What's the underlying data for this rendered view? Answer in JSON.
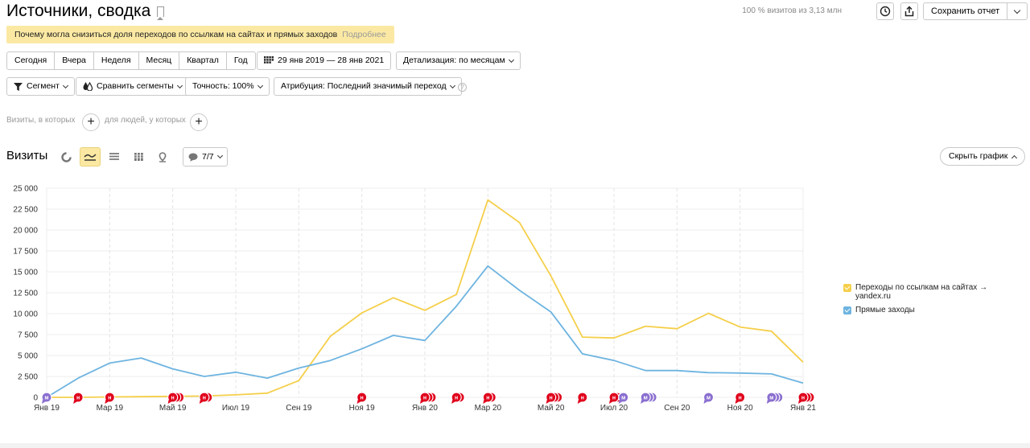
{
  "header": {
    "title": "Источники, сводка",
    "visits_info": "100 % визитов из 3,13 млн",
    "save_label": "Сохранить отчет"
  },
  "notice": {
    "text": "Почему могла снизиться доля переходов по ссылкам на сайтах и прямых заходов",
    "more_link": "Подробнее"
  },
  "period": {
    "presets": [
      "Сегодня",
      "Вчера",
      "Неделя",
      "Месяц",
      "Квартал",
      "Год"
    ],
    "date_range": "29 янв 2019 — 28 янв 2021",
    "detail": "Детализация: по месяцам"
  },
  "filters": {
    "segment": "Сегмент",
    "compare": "Сравнить сегменты",
    "accuracy": "Точность: 100%",
    "attribution": "Атрибуция: Последний значимый переход",
    "help": "?"
  },
  "segment_builder": {
    "visits_label": "Визиты, в которых",
    "people_label": "для людей, у которых",
    "plus": "+"
  },
  "chart_panel": {
    "title": "Визиты",
    "annotations_label": "7/7",
    "hide_label": "Скрыть график"
  },
  "colors": {
    "yellow": "#f5cf4a",
    "blue": "#6eb4e0",
    "red_marker": "#e0001b",
    "purple_marker": "#8a6fd0"
  },
  "chart_data": {
    "type": "line",
    "x": [
      "Янв 19",
      "Фев 19",
      "Мар 19",
      "Апр 19",
      "Май 19",
      "Июн 19",
      "Июл 19",
      "Авг 19",
      "Сен 19",
      "Окт 19",
      "Ноя 19",
      "Дек 19",
      "Янв 20",
      "Фев 20",
      "Мар 20",
      "Апр 20",
      "Май 20",
      "Июн 20",
      "Июл 20",
      "Авг 20",
      "Сен 20",
      "Окт 20",
      "Ноя 20",
      "Дек 20",
      "Янв 21"
    ],
    "x_tick_labels": [
      "Янв 19",
      "Мар 19",
      "Май 19",
      "Июл 19",
      "Сен 19",
      "Ноя 19",
      "Янв 20",
      "Мар 20",
      "Май 20",
      "Июл 20",
      "Сен 20",
      "Ноя 20",
      "Янв 21"
    ],
    "y_tick_labels": [
      "0",
      "2 500",
      "5 000",
      "7 500",
      "10 000",
      "12 500",
      "15 000",
      "17 500",
      "20 000",
      "22 500",
      "25 000"
    ],
    "ylim": [
      0,
      25000
    ],
    "grid": true,
    "legend_position": "right",
    "series": [
      {
        "name": "Переходы по ссылкам на сайтах → yandex.ru",
        "color": "#f5cf4a",
        "values": [
          0,
          0,
          50,
          80,
          120,
          150,
          300,
          500,
          2000,
          7300,
          10100,
          11900,
          10400,
          12300,
          23600,
          20900,
          14500,
          7200,
          7100,
          8500,
          8200,
          10050,
          8400,
          7900,
          4200
        ]
      },
      {
        "name": "Прямые заходы",
        "color": "#6eb4e0",
        "values": [
          0,
          2300,
          4100,
          4700,
          3400,
          2500,
          3000,
          2300,
          3500,
          4400,
          5800,
          7400,
          6800,
          10900,
          15700,
          12800,
          10200,
          5200,
          4400,
          3200,
          3200,
          2950,
          2900,
          2800,
          1700
        ]
      }
    ],
    "annotation_markers": [
      {
        "x_index": 0,
        "type": "purple",
        "count": 1
      },
      {
        "x_index": 1,
        "type": "red",
        "count": 1
      },
      {
        "x_index": 2,
        "type": "red",
        "count": 1
      },
      {
        "x_index": 4,
        "type": "red",
        "count": 3
      },
      {
        "x_index": 5,
        "type": "red",
        "count": 2
      },
      {
        "x_index": 10,
        "type": "red",
        "count": 1
      },
      {
        "x_index": 12,
        "type": "red",
        "count": 3
      },
      {
        "x_index": 13,
        "type": "red",
        "count": 2
      },
      {
        "x_index": 14,
        "type": "red",
        "count": 2
      },
      {
        "x_index": 16,
        "type": "red",
        "count": 3
      },
      {
        "x_index": 17,
        "type": "red",
        "count": 1
      },
      {
        "x_index": 18,
        "type": "red",
        "count": 2
      },
      {
        "x_index": 18.3,
        "type": "purple",
        "count": 1
      },
      {
        "x_index": 19,
        "type": "purple",
        "count": 3
      },
      {
        "x_index": 21,
        "type": "purple",
        "count": 1
      },
      {
        "x_index": 22,
        "type": "red",
        "count": 1
      },
      {
        "x_index": 23,
        "type": "purple",
        "count": 3
      },
      {
        "x_index": 24,
        "type": "red",
        "count": 3
      }
    ],
    "marker_letters": {
      "red": "н",
      "purple": "м"
    }
  }
}
